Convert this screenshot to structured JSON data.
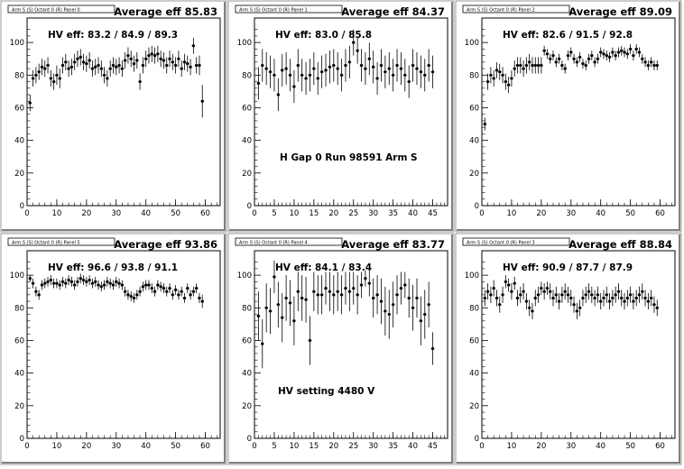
{
  "panels": [
    {
      "box_label": "Arm S (S) Octant 0 (R) Panel 0",
      "avg_label": "Average eff 85.83",
      "hv_label": "HV eff:   83.2 / 84.9 / 89.3",
      "extra_label": ""
    },
    {
      "box_label": "Arm S (S) Octant 0 (R) Panel 1",
      "avg_label": "Average eff 84.37",
      "hv_label": "HV eff:   83.0 / 85.8",
      "extra_label": "H Gap 0 Run 98591 Arm S"
    },
    {
      "box_label": "Arm S (S) Octant 0 (R) Panel 2",
      "avg_label": "Average eff 89.09",
      "hv_label": "HV eff:   82.6 / 91.5 / 92.8",
      "extra_label": ""
    },
    {
      "box_label": "Arm S (S) Octant 0 (R) Panel 5",
      "avg_label": "Average eff 93.86",
      "hv_label": "HV eff:   96.6 / 93.8 / 91.1",
      "extra_label": ""
    },
    {
      "box_label": "Arm S (S) Octant 0 (R) Panel 4",
      "avg_label": "Average eff 83.77",
      "hv_label": "HV eff:   84.1 / 83.4",
      "extra_label": "HV setting 4480 V"
    },
    {
      "box_label": "Arm S (S) Octant 0 (R) Panel 3",
      "avg_label": "Average eff 88.84",
      "hv_label": "HV eff:   90.9 / 87.7 / 87.9",
      "extra_label": ""
    }
  ],
  "chart_data": [
    {
      "type": "scatter",
      "title": "Average eff 85.83",
      "xlim": [
        0,
        65
      ],
      "ylim": [
        0,
        115
      ],
      "x_ticks": [
        0,
        10,
        20,
        30,
        40,
        50,
        60
      ],
      "y_ticks": [
        0,
        20,
        40,
        60,
        80,
        100
      ],
      "x": [
        1,
        2,
        3,
        4,
        5,
        6,
        7,
        8,
        9,
        10,
        11,
        12,
        13,
        14,
        15,
        16,
        17,
        18,
        19,
        20,
        21,
        22,
        23,
        24,
        25,
        26,
        27,
        28,
        29,
        30,
        31,
        32,
        33,
        34,
        35,
        36,
        37,
        38,
        39,
        40,
        41,
        42,
        43,
        44,
        45,
        46,
        47,
        48,
        49,
        50,
        51,
        52,
        53,
        54,
        55,
        56,
        57,
        58,
        59
      ],
      "y": [
        63,
        78,
        80,
        82,
        85,
        84,
        86,
        78,
        76,
        80,
        78,
        86,
        88,
        84,
        85,
        88,
        90,
        91,
        88,
        87,
        89,
        84,
        85,
        86,
        84,
        80,
        78,
        84,
        86,
        85,
        86,
        84,
        89,
        92,
        90,
        87,
        89,
        76,
        86,
        90,
        92,
        93,
        92,
        93,
        90,
        89,
        86,
        90,
        88,
        86,
        90,
        84,
        88,
        87,
        85,
        98,
        86,
        86,
        64
      ],
      "yerr": [
        5,
        5,
        5,
        5,
        5,
        5,
        5,
        5,
        5,
        6,
        6,
        5,
        5,
        5,
        5,
        5,
        5,
        5,
        5,
        5,
        5,
        5,
        5,
        5,
        5,
        5,
        5,
        5,
        5,
        5,
        5,
        5,
        5,
        5,
        5,
        5,
        5,
        5,
        5,
        5,
        5,
        5,
        5,
        5,
        5,
        5,
        5,
        5,
        5,
        5,
        5,
        5,
        5,
        5,
        5,
        5,
        5,
        6,
        10
      ]
    },
    {
      "type": "scatter",
      "title": "Average eff 84.37",
      "xlim": [
        0,
        48.75
      ],
      "ylim": [
        0,
        115
      ],
      "x_ticks": [
        0,
        5,
        10,
        15,
        20,
        25,
        30,
        35,
        40,
        45
      ],
      "y_ticks": [
        0,
        20,
        40,
        60,
        80,
        100
      ],
      "x": [
        1,
        2,
        3,
        4,
        5,
        6,
        7,
        8,
        9,
        10,
        11,
        12,
        13,
        14,
        15,
        16,
        17,
        18,
        19,
        20,
        21,
        22,
        23,
        24,
        25,
        26,
        27,
        28,
        29,
        30,
        31,
        32,
        33,
        34,
        35,
        36,
        37,
        38,
        39,
        40,
        41,
        42,
        43,
        44,
        45
      ],
      "y": [
        75,
        86,
        84,
        82,
        80,
        68,
        83,
        84,
        80,
        73,
        86,
        80,
        78,
        80,
        84,
        78,
        82,
        83,
        85,
        86,
        84,
        80,
        86,
        88,
        100,
        95,
        86,
        84,
        90,
        85,
        78,
        86,
        82,
        84,
        80,
        86,
        84,
        80,
        76,
        86,
        84,
        82,
        80,
        86,
        82
      ],
      "yerr": [
        10,
        10,
        10,
        10,
        10,
        10,
        10,
        10,
        10,
        10,
        10,
        10,
        10,
        10,
        10,
        10,
        10,
        10,
        10,
        10,
        10,
        10,
        10,
        10,
        8,
        8,
        10,
        10,
        10,
        10,
        10,
        10,
        10,
        10,
        10,
        10,
        10,
        10,
        10,
        10,
        10,
        10,
        10,
        10,
        10
      ]
    },
    {
      "type": "scatter",
      "title": "Average eff 89.09",
      "xlim": [
        0,
        65
      ],
      "ylim": [
        0,
        115
      ],
      "x_ticks": [
        0,
        10,
        20,
        30,
        40,
        50,
        60
      ],
      "y_ticks": [
        0,
        20,
        40,
        60,
        80,
        100
      ],
      "x": [
        1,
        2,
        3,
        4,
        5,
        6,
        7,
        8,
        9,
        10,
        11,
        12,
        13,
        14,
        15,
        16,
        17,
        18,
        19,
        20,
        21,
        22,
        23,
        24,
        25,
        26,
        27,
        28,
        29,
        30,
        31,
        32,
        33,
        34,
        35,
        36,
        37,
        38,
        39,
        40,
        41,
        42,
        43,
        44,
        45,
        46,
        47,
        48,
        49,
        50,
        51,
        52,
        53,
        54,
        55,
        56,
        57,
        58,
        59
      ],
      "y": [
        50,
        76,
        80,
        78,
        83,
        82,
        80,
        76,
        74,
        78,
        84,
        86,
        86,
        84,
        86,
        88,
        86,
        86,
        86,
        86,
        95,
        93,
        90,
        92,
        88,
        90,
        86,
        84,
        92,
        94,
        90,
        88,
        91,
        87,
        86,
        90,
        92,
        88,
        90,
        94,
        93,
        92,
        91,
        94,
        92,
        94,
        95,
        94,
        93,
        96,
        92,
        96,
        94,
        90,
        88,
        86,
        88,
        86,
        86
      ],
      "yerr": [
        4,
        5,
        5,
        5,
        5,
        5,
        5,
        5,
        5,
        5,
        5,
        5,
        5,
        5,
        5,
        5,
        5,
        5,
        5,
        5,
        3,
        3,
        3,
        3,
        3,
        3,
        3,
        3,
        3,
        3,
        3,
        3,
        3,
        3,
        3,
        3,
        3,
        3,
        3,
        3,
        3,
        3,
        3,
        3,
        3,
        3,
        3,
        3,
        3,
        3,
        3,
        3,
        3,
        3,
        3,
        3,
        3,
        3,
        3
      ]
    },
    {
      "type": "scatter",
      "title": "Average eff 93.86",
      "xlim": [
        0,
        65
      ],
      "ylim": [
        0,
        115
      ],
      "x_ticks": [
        0,
        10,
        20,
        30,
        40,
        50,
        60
      ],
      "y_ticks": [
        0,
        20,
        40,
        60,
        80,
        100
      ],
      "x": [
        1,
        2,
        3,
        4,
        5,
        6,
        7,
        8,
        9,
        10,
        11,
        12,
        13,
        14,
        15,
        16,
        17,
        18,
        19,
        20,
        21,
        22,
        23,
        24,
        25,
        26,
        27,
        28,
        29,
        30,
        31,
        32,
        33,
        34,
        35,
        36,
        37,
        38,
        39,
        40,
        41,
        42,
        43,
        44,
        45,
        46,
        47,
        48,
        49,
        50,
        51,
        52,
        53,
        54,
        55,
        56,
        57,
        58,
        59
      ],
      "y": [
        98,
        95,
        90,
        88,
        94,
        95,
        96,
        97,
        95,
        95,
        94,
        96,
        95,
        97,
        96,
        94,
        96,
        98,
        97,
        96,
        97,
        95,
        96,
        94,
        93,
        94,
        96,
        95,
        94,
        96,
        95,
        94,
        90,
        88,
        87,
        86,
        88,
        90,
        93,
        94,
        94,
        92,
        90,
        94,
        93,
        92,
        90,
        92,
        88,
        91,
        88,
        90,
        86,
        92,
        88,
        90,
        92,
        86,
        84
      ],
      "yerr": [
        2,
        3,
        3,
        3,
        3,
        3,
        3,
        3,
        3,
        3,
        3,
        3,
        3,
        3,
        3,
        3,
        3,
        3,
        3,
        3,
        3,
        3,
        3,
        3,
        3,
        3,
        3,
        3,
        3,
        3,
        3,
        3,
        3,
        3,
        3,
        3,
        3,
        3,
        3,
        3,
        3,
        3,
        3,
        3,
        3,
        3,
        3,
        3,
        3,
        3,
        3,
        3,
        3,
        3,
        3,
        3,
        3,
        3,
        4
      ]
    },
    {
      "type": "scatter",
      "title": "Average eff 83.77",
      "xlim": [
        0,
        48.75
      ],
      "ylim": [
        0,
        115
      ],
      "x_ticks": [
        0,
        5,
        10,
        15,
        20,
        25,
        30,
        35,
        40,
        45
      ],
      "y_ticks": [
        0,
        20,
        40,
        60,
        80,
        100
      ],
      "x": [
        1,
        2,
        3,
        4,
        5,
        6,
        7,
        8,
        9,
        10,
        11,
        12,
        13,
        14,
        15,
        16,
        17,
        18,
        19,
        20,
        21,
        22,
        23,
        24,
        25,
        26,
        27,
        28,
        29,
        30,
        31,
        32,
        33,
        34,
        35,
        36,
        37,
        38,
        39,
        40,
        41,
        42,
        43,
        44,
        45
      ],
      "y": [
        75,
        58,
        80,
        78,
        99,
        82,
        74,
        86,
        83,
        72,
        90,
        86,
        85,
        60,
        90,
        88,
        88,
        92,
        90,
        88,
        90,
        88,
        92,
        90,
        92,
        88,
        94,
        98,
        95,
        86,
        88,
        84,
        78,
        76,
        82,
        88,
        92,
        94,
        86,
        80,
        86,
        72,
        76,
        82,
        55
      ],
      "yerr": [
        15,
        15,
        15,
        14,
        10,
        14,
        15,
        14,
        14,
        15,
        12,
        14,
        14,
        15,
        12,
        12,
        12,
        10,
        12,
        12,
        12,
        12,
        10,
        12,
        10,
        12,
        8,
        5,
        8,
        12,
        12,
        14,
        15,
        15,
        14,
        12,
        10,
        8,
        12,
        14,
        12,
        15,
        15,
        14,
        10
      ]
    },
    {
      "type": "scatter",
      "title": "Average eff 88.84",
      "xlim": [
        0,
        65
      ],
      "ylim": [
        0,
        115
      ],
      "x_ticks": [
        0,
        10,
        20,
        30,
        40,
        50,
        60
      ],
      "y_ticks": [
        0,
        20,
        40,
        60,
        80,
        100
      ],
      "x": [
        1,
        2,
        3,
        4,
        5,
        6,
        7,
        8,
        9,
        10,
        11,
        12,
        13,
        14,
        15,
        16,
        17,
        18,
        19,
        20,
        21,
        22,
        23,
        24,
        25,
        26,
        27,
        28,
        29,
        30,
        31,
        32,
        33,
        34,
        35,
        36,
        37,
        38,
        39,
        40,
        41,
        42,
        43,
        44,
        45,
        46,
        47,
        48,
        49,
        50,
        51,
        52,
        53,
        54,
        55,
        56,
        57,
        58,
        59
      ],
      "y": [
        86,
        90,
        88,
        92,
        86,
        82,
        88,
        96,
        94,
        90,
        95,
        86,
        88,
        90,
        84,
        80,
        78,
        86,
        88,
        92,
        90,
        92,
        90,
        86,
        88,
        84,
        88,
        90,
        88,
        86,
        82,
        78,
        80,
        86,
        88,
        90,
        88,
        86,
        88,
        84,
        86,
        88,
        84,
        86,
        88,
        90,
        86,
        84,
        86,
        88,
        84,
        86,
        88,
        90,
        86,
        84,
        86,
        82,
        80
      ],
      "yerr": [
        5,
        5,
        5,
        5,
        5,
        5,
        5,
        4,
        4,
        5,
        4,
        5,
        5,
        5,
        5,
        5,
        5,
        5,
        5,
        4,
        5,
        4,
        5,
        5,
        5,
        5,
        5,
        5,
        5,
        5,
        5,
        5,
        5,
        5,
        5,
        5,
        5,
        5,
        5,
        5,
        5,
        5,
        5,
        5,
        5,
        5,
        5,
        5,
        5,
        5,
        5,
        5,
        5,
        5,
        5,
        5,
        5,
        5,
        5
      ]
    }
  ]
}
